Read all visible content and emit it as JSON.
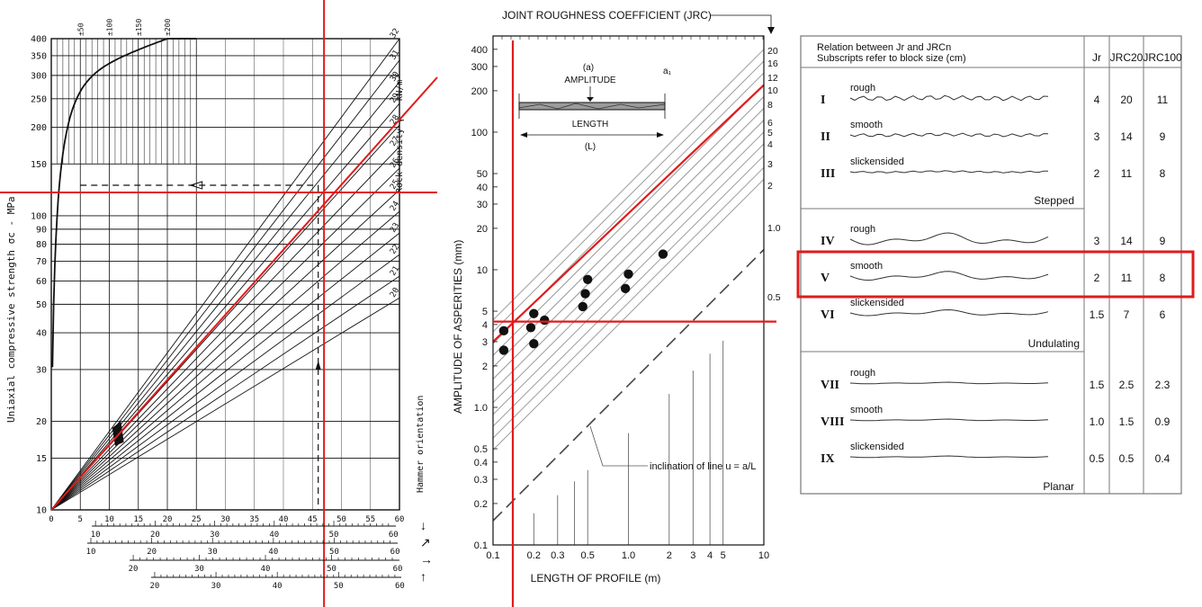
{
  "colors": {
    "ink": "#111111",
    "grid": "#9a9a9a",
    "highlight": "#e01b1b",
    "table_border": "#777777"
  },
  "panel1": {
    "ylabel": "Uniaxial compressive strength σc - MPa",
    "density_label": "Rock density γ - kN/m³",
    "hammer_label": "Hammer orientation",
    "strength_curve_labels": [
      "±50",
      "±100",
      "±150",
      "±200"
    ],
    "density_values": [
      "20",
      "21",
      "22",
      "23",
      "24",
      "25",
      "26",
      "27",
      "28",
      "29",
      "30",
      "31",
      "32"
    ]
  },
  "panel2": {
    "title": "JOINT ROUGHNESS COEFFICIENT (JRC)",
    "inset": {
      "caption": "(a)",
      "amplitude": "AMPLITUDE",
      "a_label": "a₁",
      "length": "LENGTH",
      "length_symbol": "(L)"
    },
    "inclination_note": "inclination of line   u = a/L"
  },
  "table": {
    "heading_line1": "Relation between  Jr  and JRCn",
    "heading_line2": "Subscripts refer to block size (cm)",
    "col_jr": "Jr",
    "col_jrc20": "JRC20",
    "col_jrc100": "JRC100",
    "groups": [
      "Stepped",
      "Undulating",
      "Planar"
    ],
    "rows": [
      {
        "numeral": "I",
        "desc": "rough",
        "jr": "4",
        "jrc20": "20",
        "jrc100": "11"
      },
      {
        "numeral": "II",
        "desc": "smooth",
        "jr": "3",
        "jrc20": "14",
        "jrc100": "9"
      },
      {
        "numeral": "III",
        "desc": "slickensided",
        "jr": "2",
        "jrc20": "11",
        "jrc100": "8"
      },
      {
        "numeral": "IV",
        "desc": "rough",
        "jr": "3",
        "jrc20": "14",
        "jrc100": "9"
      },
      {
        "numeral": "V",
        "desc": "smooth",
        "jr": "2",
        "jrc20": "11",
        "jrc100": "8"
      },
      {
        "numeral": "VI",
        "desc": "slickensided",
        "jr": "1.5",
        "jrc20": "7",
        "jrc100": "6"
      },
      {
        "numeral": "VII",
        "desc": "rough",
        "jr": "1.5",
        "jrc20": "2.5",
        "jrc100": "2.3"
      },
      {
        "numeral": "VIII",
        "desc": "smooth",
        "jr": "1.0",
        "jrc20": "1.5",
        "jrc100": "0.9"
      },
      {
        "numeral": "IX",
        "desc": "slickensided",
        "jr": "0.5",
        "jrc20": "0.5",
        "jrc100": "0.4"
      }
    ],
    "highlighted_row": "V"
  },
  "chart_data": [
    {
      "type": "line",
      "xlabel": "",
      "ylabel": "Uniaxial compressive strength σc - MPa",
      "yscale": "log",
      "xlim": [
        0,
        60
      ],
      "ylim": [
        10,
        400
      ],
      "x_ticks": [
        "0",
        "5",
        "10",
        "15",
        "20",
        "25",
        "30",
        "35",
        "40",
        "45",
        "50",
        "55",
        "60"
      ],
      "y_ticks": [
        "10",
        "15",
        "20",
        "30",
        "40",
        "50",
        "60",
        "70",
        "80",
        "90",
        "100",
        "150",
        "200",
        "250",
        "300",
        "350",
        "400"
      ],
      "hammer_scales": [
        {
          "ticks": [
            "10",
            "20",
            "30",
            "40",
            "50",
            "60"
          ],
          "start": 10,
          "end": 60
        },
        {
          "ticks": [
            "10",
            "20",
            "30",
            "40",
            "50",
            "60"
          ],
          "start": 8,
          "end": 60
        },
        {
          "ticks": [
            "20",
            "30",
            "40",
            "50",
            "60"
          ],
          "start": 15,
          "end": 63
        },
        {
          "ticks": [
            "20",
            "30",
            "40",
            "50",
            "60"
          ],
          "start": 18,
          "end": 64
        }
      ],
      "density_range": [
        20,
        32
      ],
      "reading": {
        "rebound": 47,
        "ucs": 120,
        "density": 26
      },
      "dashed_reading": {
        "rebound": 46,
        "ucs": 127
      }
    },
    {
      "type": "scatter",
      "xlabel": "LENGTH OF PROFILE (m)",
      "ylabel": "AMPLITUDE OF ASPERITIES (mm)",
      "xscale": "log",
      "yscale": "log",
      "xlim": [
        0.1,
        10
      ],
      "ylim": [
        0.1,
        500
      ],
      "x_ticks": [
        "0.1",
        "0.2",
        "0.3",
        "0.5",
        "1.0",
        "2",
        "3",
        "4",
        "5",
        "10"
      ],
      "y_ticks": [
        "0.1",
        "0.2",
        "0.3",
        "0.4",
        "0.5",
        "1.0",
        "2",
        "3",
        "4",
        "5",
        "10",
        "20",
        "30",
        "40",
        "50",
        "100",
        "200",
        "300",
        "400"
      ],
      "jrc_lines": [
        "20",
        "16",
        "12",
        "10",
        "8",
        "6",
        "5",
        "4",
        "3",
        "2",
        "1.0",
        "0.5"
      ],
      "points": [
        {
          "x": 0.12,
          "y": 3.6
        },
        {
          "x": 0.12,
          "y": 2.6
        },
        {
          "x": 0.19,
          "y": 3.8
        },
        {
          "x": 0.2,
          "y": 4.8
        },
        {
          "x": 0.2,
          "y": 2.9
        },
        {
          "x": 0.24,
          "y": 4.3
        },
        {
          "x": 0.46,
          "y": 5.4
        },
        {
          "x": 0.48,
          "y": 6.7
        },
        {
          "x": 0.5,
          "y": 8.5
        },
        {
          "x": 0.95,
          "y": 7.3
        },
        {
          "x": 1.0,
          "y": 9.3
        },
        {
          "x": 1.8,
          "y": 13
        }
      ],
      "reading": {
        "length": 0.14,
        "amplitude": 4.2
      }
    }
  ]
}
